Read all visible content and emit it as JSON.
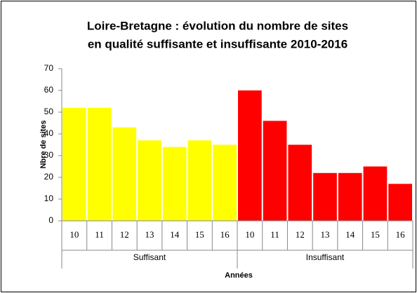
{
  "chart_data": {
    "type": "bar",
    "title": [
      "Loire-Bretagne : évolution du nombre de sites",
      "en qualité suffisante et insuffisante 2010-2016"
    ],
    "y_label": "Nbre de sites",
    "x_label": "Années",
    "series": [
      {
        "name": "Suffisant",
        "color": "#ffff00",
        "categories": [
          "10",
          "11",
          "12",
          "13",
          "14",
          "15",
          "16"
        ],
        "values": [
          52,
          52,
          43,
          37,
          34,
          37,
          35
        ]
      },
      {
        "name": "Insuffisant",
        "color": "#ff0000",
        "categories": [
          "10",
          "11",
          "12",
          "13",
          "14",
          "15",
          "16"
        ],
        "values": [
          60,
          46,
          35,
          22,
          22,
          25,
          17
        ]
      }
    ],
    "ylim": [
      0,
      70
    ],
    "yticks": [
      0,
      10,
      20,
      30,
      40,
      50,
      60,
      70
    ],
    "grid": false
  }
}
